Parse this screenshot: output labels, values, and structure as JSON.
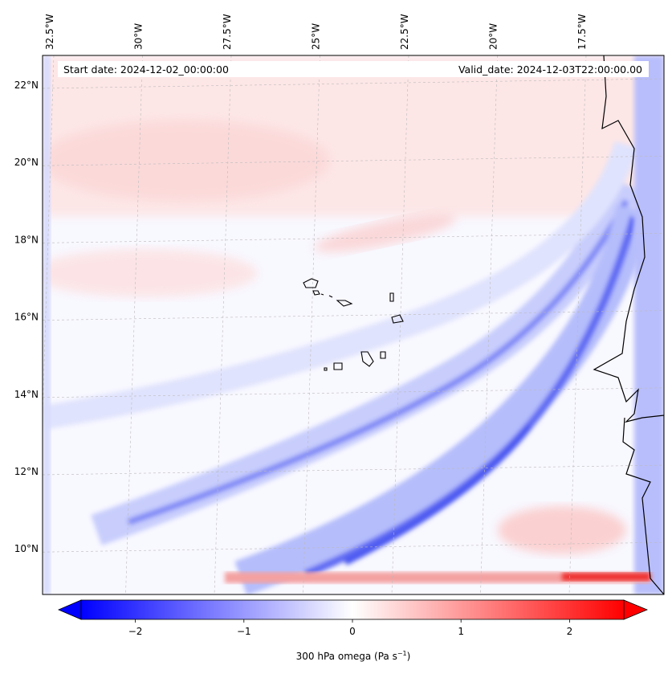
{
  "chart_data": {
    "type": "heatmap",
    "title": "",
    "variable": "300 hPa omega",
    "header": {
      "start_date": "Start date: 2024-12-02_00:00:00",
      "valid_date": "Valid_date: 2024-12-03T22:00:00.00"
    },
    "lon_ticks": [
      "32.5°W",
      "30°W",
      "27.5°W",
      "25°W",
      "22.5°W",
      "20°W",
      "17.5°W"
    ],
    "lon_values": [
      -32.5,
      -30,
      -27.5,
      -25,
      -22.5,
      -20,
      -17.5
    ],
    "lat_ticks": [
      "22°N",
      "20°N",
      "18°N",
      "16°N",
      "14°N",
      "12°N",
      "10°N"
    ],
    "lat_values": [
      22,
      20,
      18,
      16,
      14,
      12,
      10
    ],
    "colorbar": {
      "label_main": "300 hPa omega (Pa s",
      "label_exp": "−1",
      "label_close": ")",
      "ticks": [
        "−2",
        "−1",
        "0",
        "1",
        "2"
      ],
      "tick_values": [
        -2,
        -1,
        0,
        1,
        2
      ],
      "vmin": -2.5,
      "vmax": 2.5,
      "extend": "both",
      "colormap": "bwr",
      "low_color": "#0000ff",
      "mid_color": "#ffffff",
      "high_color": "#ff0000"
    }
  }
}
